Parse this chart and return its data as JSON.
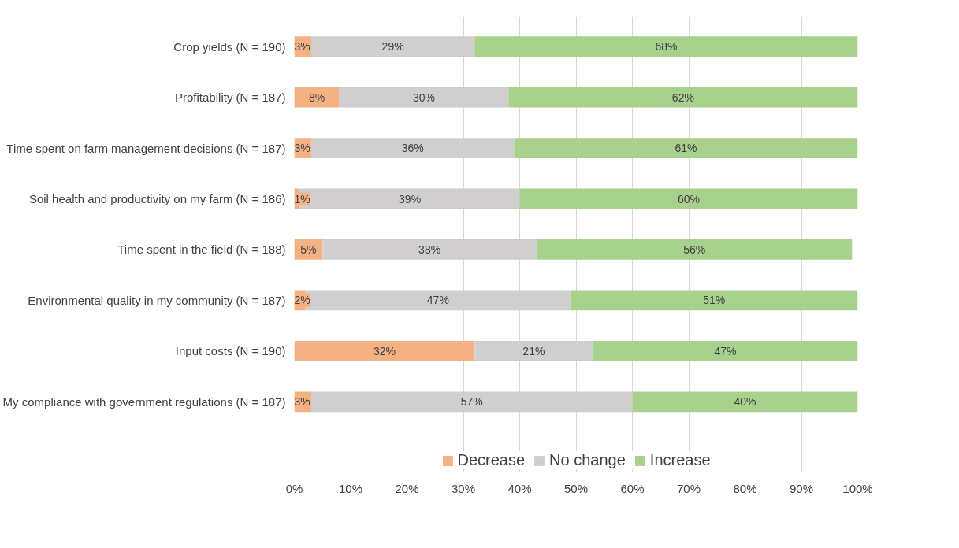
{
  "chart_data": {
    "type": "bar",
    "orientation": "horizontal",
    "stacked": true,
    "categories": [
      "Crop yields (N = 190)",
      "Profitability (N = 187)",
      "Time spent on farm management decisions (N = 187)",
      "Soil health and productivity on my farm (N = 186)",
      "Time spent in the field (N = 188)",
      "Environmental quality in my community (N = 187)",
      "Input costs (N = 190)",
      "My compliance with government regulations (N = 187)"
    ],
    "series": [
      {
        "name": "Decrease",
        "color": "#f4b183",
        "values": [
          3,
          8,
          3,
          1,
          5,
          2,
          32,
          3
        ],
        "value_labels": [
          "3%",
          "8%",
          "3%",
          "1%",
          "5%",
          "2%",
          "32%",
          "3%"
        ]
      },
      {
        "name": "No change",
        "color": "#d0cece",
        "values": [
          29,
          30,
          36,
          39,
          38,
          47,
          21,
          57
        ],
        "value_labels": [
          "29%",
          "30%",
          "36%",
          "39%",
          "38%",
          "47%",
          "21%",
          "57%"
        ]
      },
      {
        "name": "Increase",
        "color": "#a9d18e",
        "values": [
          68,
          62,
          61,
          60,
          56,
          51,
          47,
          40
        ],
        "value_labels": [
          "68%",
          "62%",
          "61%",
          "60%",
          "56%",
          "51%",
          "47%",
          "40%"
        ]
      }
    ],
    "xlim": [
      0,
      100
    ],
    "xticks": [
      {
        "value": 0,
        "label": "0%"
      },
      {
        "value": 10,
        "label": "10%"
      },
      {
        "value": 20,
        "label": "20%"
      },
      {
        "value": 30,
        "label": "30%"
      },
      {
        "value": 40,
        "label": "40%"
      },
      {
        "value": 50,
        "label": "50%"
      },
      {
        "value": 60,
        "label": "60%"
      },
      {
        "value": 70,
        "label": "70%"
      },
      {
        "value": 80,
        "label": "80%"
      },
      {
        "value": 90,
        "label": "90%"
      },
      {
        "value": 100,
        "label": "100%"
      }
    ],
    "grid": "x",
    "legend": "bottom"
  }
}
